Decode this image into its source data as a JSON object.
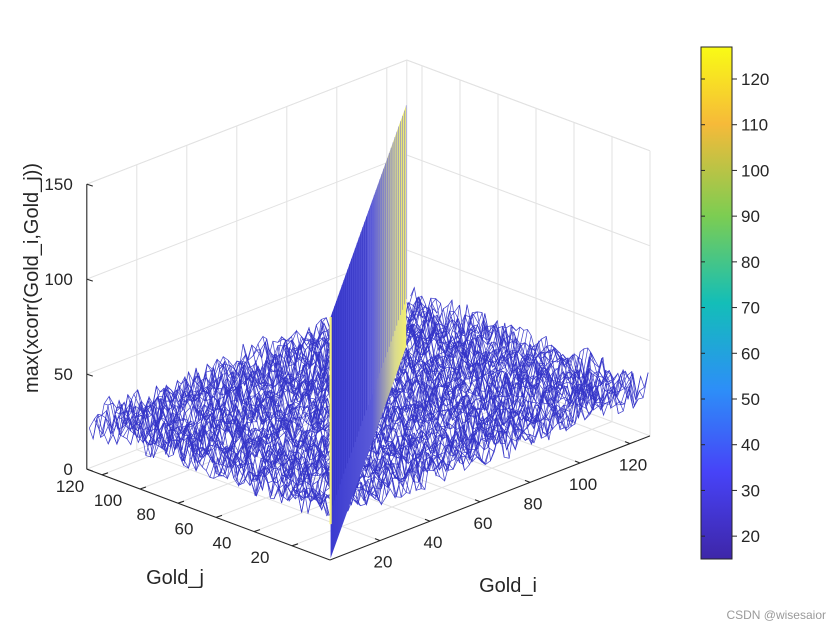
{
  "chart_data": {
    "type": "surface",
    "view": "3d-mesh",
    "zlabel": "max(xcorr(Gold_i,Gold_j))",
    "xlabel": "Gold_i",
    "ylabel": "Gold_j",
    "x_range": [
      1,
      127
    ],
    "y_range": [
      1,
      127
    ],
    "zlim": [
      0,
      150
    ],
    "z_ticks": [
      0,
      50,
      100,
      150
    ],
    "x_ticks": [
      20,
      40,
      60,
      80,
      100,
      120
    ],
    "y_ticks": [
      20,
      40,
      60,
      80,
      100,
      120
    ],
    "diagonal_peak": 127,
    "off_diagonal_typical": 25,
    "off_diagonal_range": [
      15,
      41
    ],
    "grid": true,
    "colorbar": {
      "ticks": [
        20,
        30,
        40,
        50,
        60,
        70,
        80,
        90,
        100,
        110,
        120
      ],
      "range": [
        15,
        127
      ],
      "colormap": "parula",
      "colors": [
        "#3e26a8",
        "#4743f8",
        "#2d8ef8",
        "#13beb8",
        "#7ccd52",
        "#f6ba39",
        "#f9fb15"
      ]
    },
    "mesh_color": "#3535c8"
  },
  "watermark": "CSDN @wisesaior"
}
